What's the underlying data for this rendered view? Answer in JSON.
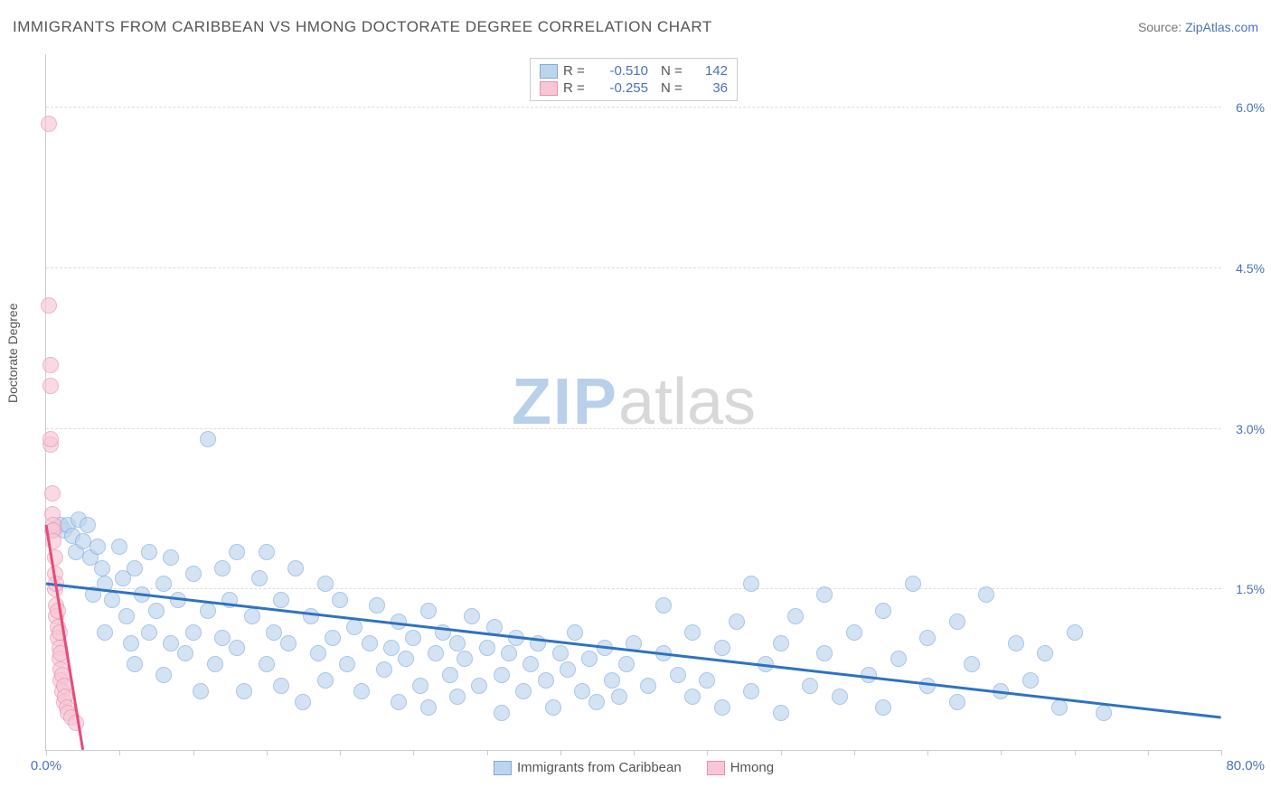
{
  "title": "IMMIGRANTS FROM CARIBBEAN VS HMONG DOCTORATE DEGREE CORRELATION CHART",
  "source_label": "Source: ",
  "source_value": "ZipAtlas.com",
  "yaxis_title": "Doctorate Degree",
  "watermark_zip": "ZIP",
  "watermark_atlas": "atlas",
  "watermark_zip_color": "#b9d0ea",
  "watermark_atlas_color": "#d8d8d8",
  "chart": {
    "type": "scatter",
    "xlim": [
      0,
      80
    ],
    "ylim": [
      0,
      6.5
    ],
    "xticks": [
      0,
      5,
      10,
      15,
      20,
      25,
      30,
      35,
      40,
      45,
      50,
      55,
      60,
      65,
      70,
      75,
      80
    ],
    "xtick_labels": {
      "0": "0.0%",
      "80": "80.0%"
    },
    "xtick_label_color": "#4a72b8",
    "yticks": [
      1.5,
      3.0,
      4.5,
      6.0
    ],
    "ytick_labels": [
      "1.5%",
      "3.0%",
      "4.5%",
      "6.0%"
    ],
    "ytick_label_color": "#4a72b8",
    "grid_color": "#dddddd",
    "background_color": "#ffffff",
    "point_radius": 8,
    "point_stroke_width": 1.5,
    "series": [
      {
        "name": "Immigrants from Caribbean",
        "short": "caribbean",
        "fill": "#bcd5ef",
        "fill_opacity": 0.65,
        "stroke": "#7fa9d8",
        "reg_color": "#2e72c2",
        "reg_width": 3,
        "R": "-0.510",
        "N": "142",
        "reg_line": {
          "x1": 0,
          "y1": 1.55,
          "x2": 80,
          "y2": 0.3
        },
        "points": [
          [
            1.0,
            2.1
          ],
          [
            1.2,
            2.05
          ],
          [
            1.5,
            2.1
          ],
          [
            1.8,
            2.0
          ],
          [
            2.0,
            1.85
          ],
          [
            2.2,
            2.15
          ],
          [
            2.5,
            1.95
          ],
          [
            2.8,
            2.1
          ],
          [
            3.0,
            1.8
          ],
          [
            3.2,
            1.45
          ],
          [
            3.5,
            1.9
          ],
          [
            3.8,
            1.7
          ],
          [
            4.0,
            1.55
          ],
          [
            4.0,
            1.1
          ],
          [
            4.5,
            1.4
          ],
          [
            5.0,
            1.9
          ],
          [
            5.2,
            1.6
          ],
          [
            5.5,
            1.25
          ],
          [
            5.8,
            1.0
          ],
          [
            6.0,
            1.7
          ],
          [
            6.0,
            0.8
          ],
          [
            6.5,
            1.45
          ],
          [
            7.0,
            1.85
          ],
          [
            7.0,
            1.1
          ],
          [
            7.5,
            1.3
          ],
          [
            8.0,
            1.55
          ],
          [
            8.0,
            0.7
          ],
          [
            8.5,
            1.0
          ],
          [
            8.5,
            1.8
          ],
          [
            9.0,
            1.4
          ],
          [
            9.5,
            0.9
          ],
          [
            10.0,
            1.65
          ],
          [
            10.0,
            1.1
          ],
          [
            10.5,
            0.55
          ],
          [
            11.0,
            2.9
          ],
          [
            11.0,
            1.3
          ],
          [
            11.5,
            0.8
          ],
          [
            12.0,
            1.7
          ],
          [
            12.0,
            1.05
          ],
          [
            12.5,
            1.4
          ],
          [
            13.0,
            0.95
          ],
          [
            13.0,
            1.85
          ],
          [
            13.5,
            0.55
          ],
          [
            14.0,
            1.25
          ],
          [
            14.5,
            1.6
          ],
          [
            15.0,
            0.8
          ],
          [
            15.0,
            1.85
          ],
          [
            15.5,
            1.1
          ],
          [
            16.0,
            1.4
          ],
          [
            16.0,
            0.6
          ],
          [
            16.5,
            1.0
          ],
          [
            17.0,
            1.7
          ],
          [
            17.5,
            0.45
          ],
          [
            18.0,
            1.25
          ],
          [
            18.5,
            0.9
          ],
          [
            19.0,
            1.55
          ],
          [
            19.0,
            0.65
          ],
          [
            19.5,
            1.05
          ],
          [
            20.0,
            1.4
          ],
          [
            20.5,
            0.8
          ],
          [
            21.0,
            1.15
          ],
          [
            21.5,
            0.55
          ],
          [
            22.0,
            1.0
          ],
          [
            22.5,
            1.35
          ],
          [
            23.0,
            0.75
          ],
          [
            23.5,
            0.95
          ],
          [
            24.0,
            1.2
          ],
          [
            24.0,
            0.45
          ],
          [
            24.5,
            0.85
          ],
          [
            25.0,
            1.05
          ],
          [
            25.5,
            0.6
          ],
          [
            26.0,
            1.3
          ],
          [
            26.0,
            0.4
          ],
          [
            26.5,
            0.9
          ],
          [
            27.0,
            1.1
          ],
          [
            27.5,
            0.7
          ],
          [
            28.0,
            0.5
          ],
          [
            28.0,
            1.0
          ],
          [
            28.5,
            0.85
          ],
          [
            29.0,
            1.25
          ],
          [
            29.5,
            0.6
          ],
          [
            30.0,
            0.95
          ],
          [
            30.5,
            1.15
          ],
          [
            31.0,
            0.7
          ],
          [
            31.0,
            0.35
          ],
          [
            31.5,
            0.9
          ],
          [
            32.0,
            1.05
          ],
          [
            32.5,
            0.55
          ],
          [
            33.0,
            0.8
          ],
          [
            33.5,
            1.0
          ],
          [
            34.0,
            0.65
          ],
          [
            34.5,
            0.4
          ],
          [
            35.0,
            0.9
          ],
          [
            35.5,
            0.75
          ],
          [
            36.0,
            1.1
          ],
          [
            36.5,
            0.55
          ],
          [
            37.0,
            0.85
          ],
          [
            37.5,
            0.45
          ],
          [
            38.0,
            0.95
          ],
          [
            38.5,
            0.65
          ],
          [
            39.0,
            0.5
          ],
          [
            39.5,
            0.8
          ],
          [
            40.0,
            1.0
          ],
          [
            41.0,
            0.6
          ],
          [
            42.0,
            0.9
          ],
          [
            42.0,
            1.35
          ],
          [
            43.0,
            0.7
          ],
          [
            44.0,
            0.5
          ],
          [
            44.0,
            1.1
          ],
          [
            45.0,
            0.65
          ],
          [
            46.0,
            0.95
          ],
          [
            46.0,
            0.4
          ],
          [
            47.0,
            1.2
          ],
          [
            48.0,
            0.55
          ],
          [
            48.0,
            1.55
          ],
          [
            49.0,
            0.8
          ],
          [
            50.0,
            1.0
          ],
          [
            50.0,
            0.35
          ],
          [
            51.0,
            1.25
          ],
          [
            52.0,
            0.6
          ],
          [
            53.0,
            0.9
          ],
          [
            53.0,
            1.45
          ],
          [
            54.0,
            0.5
          ],
          [
            55.0,
            1.1
          ],
          [
            56.0,
            0.7
          ],
          [
            57.0,
            1.3
          ],
          [
            57.0,
            0.4
          ],
          [
            58.0,
            0.85
          ],
          [
            59.0,
            1.55
          ],
          [
            60.0,
            0.6
          ],
          [
            60.0,
            1.05
          ],
          [
            62.0,
            0.45
          ],
          [
            62.0,
            1.2
          ],
          [
            63.0,
            0.8
          ],
          [
            64.0,
            1.45
          ],
          [
            65.0,
            0.55
          ],
          [
            66.0,
            1.0
          ],
          [
            67.0,
            0.65
          ],
          [
            68.0,
            0.9
          ],
          [
            69.0,
            0.4
          ],
          [
            70.0,
            1.1
          ],
          [
            72.0,
            0.35
          ]
        ]
      },
      {
        "name": "Hmong",
        "short": "hmong",
        "fill": "#f7c7d6",
        "fill_opacity": 0.65,
        "stroke": "#e88fad",
        "reg_color": "#e64b7a",
        "reg_width": 3,
        "R": "-0.255",
        "N": "36",
        "reg_line": {
          "x1": 0,
          "y1": 2.1,
          "x2": 2.5,
          "y2": 0.0
        },
        "points": [
          [
            0.2,
            5.85
          ],
          [
            0.2,
            4.15
          ],
          [
            0.3,
            3.6
          ],
          [
            0.3,
            3.4
          ],
          [
            0.3,
            2.85
          ],
          [
            0.3,
            2.9
          ],
          [
            0.4,
            2.4
          ],
          [
            0.4,
            2.2
          ],
          [
            0.4,
            2.05
          ],
          [
            0.5,
            2.1
          ],
          [
            0.5,
            2.05
          ],
          [
            0.5,
            1.95
          ],
          [
            0.6,
            1.8
          ],
          [
            0.6,
            1.65
          ],
          [
            0.6,
            1.5
          ],
          [
            0.7,
            1.55
          ],
          [
            0.7,
            1.35
          ],
          [
            0.7,
            1.25
          ],
          [
            0.8,
            1.3
          ],
          [
            0.8,
            1.15
          ],
          [
            0.8,
            1.05
          ],
          [
            0.9,
            1.1
          ],
          [
            0.9,
            0.95
          ],
          [
            0.9,
            0.85
          ],
          [
            1.0,
            0.9
          ],
          [
            1.0,
            0.75
          ],
          [
            1.0,
            0.65
          ],
          [
            1.1,
            0.7
          ],
          [
            1.1,
            0.55
          ],
          [
            1.2,
            0.6
          ],
          [
            1.2,
            0.45
          ],
          [
            1.3,
            0.5
          ],
          [
            1.4,
            0.4
          ],
          [
            1.5,
            0.35
          ],
          [
            1.7,
            0.3
          ],
          [
            2.0,
            0.25
          ]
        ]
      }
    ]
  },
  "legend_bottom": [
    {
      "label": "Immigrants from Caribbean",
      "fill": "#bcd5ef",
      "stroke": "#7fa9d8"
    },
    {
      "label": "Hmong",
      "fill": "#f7c7d6",
      "stroke": "#e88fad"
    }
  ]
}
